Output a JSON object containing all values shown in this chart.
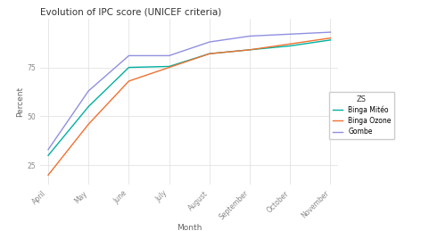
{
  "title": "Evolution of IPC score (UNICEF criteria)",
  "xlabel": "Month",
  "ylabel": "Percent",
  "months": [
    "April",
    "May",
    "June",
    "July",
    "August",
    "September",
    "October",
    "November"
  ],
  "series": {
    "Binga Mitéo": {
      "values": [
        30,
        55,
        75,
        75.5,
        82,
        84,
        86,
        89
      ],
      "color": "#00b0a0"
    },
    "Binga Ozone": {
      "values": [
        20,
        46,
        68,
        75,
        82,
        84,
        87,
        90
      ],
      "color": "#f07030"
    },
    "Gombe": {
      "values": [
        33,
        63,
        81,
        81,
        88,
        91,
        92,
        93
      ],
      "color": "#9090e0"
    }
  },
  "legend_title": "ZS",
  "yticks": [
    25,
    50,
    75
  ],
  "ylim": [
    15,
    100
  ],
  "xlim": [
    -0.2,
    7.2
  ],
  "background_color": "#ffffff",
  "grid_color": "#dddddd",
  "title_fontsize": 7.5,
  "axis_label_fontsize": 6.5,
  "tick_fontsize": 5.5,
  "legend_fontsize": 5.5,
  "legend_title_fontsize": 6,
  "linewidth": 1.0
}
